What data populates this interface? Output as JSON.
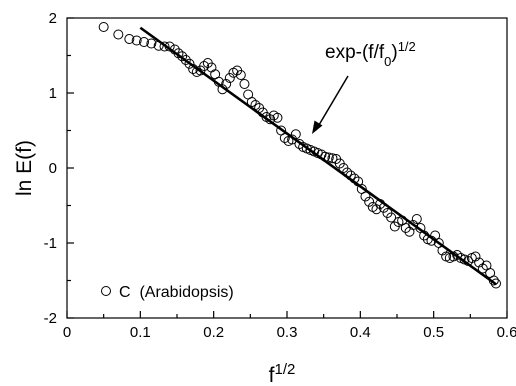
{
  "chart_data": {
    "type": "scatter",
    "xlabel": {
      "base": "f",
      "sup": "1/2"
    },
    "ylabel": "ln E(f)",
    "xlim": [
      0,
      0.6
    ],
    "ylim": [
      -2,
      2
    ],
    "xticks": [
      "0",
      "0.1",
      "0.2",
      "0.3",
      "0.4",
      "0.5",
      "0.6"
    ],
    "yticks": [
      "-2",
      "-1",
      "0",
      "1",
      "2"
    ],
    "legend": {
      "marker": "open-circle",
      "label": "C  (Arabidopsis)",
      "position": "bottom-left"
    },
    "annotation": {
      "base": "exp-(f/f",
      "sub": "0",
      "close": ")",
      "sup": "1/2"
    },
    "series": [
      {
        "kind": "scatter",
        "marker": "open-circle",
        "points": [
          [
            0.05,
            1.88
          ],
          [
            0.07,
            1.78
          ],
          [
            0.085,
            1.72
          ],
          [
            0.095,
            1.7
          ],
          [
            0.105,
            1.68
          ],
          [
            0.115,
            1.66
          ],
          [
            0.125,
            1.63
          ],
          [
            0.133,
            1.62
          ],
          [
            0.14,
            1.62
          ],
          [
            0.147,
            1.58
          ],
          [
            0.152,
            1.53
          ],
          [
            0.157,
            1.49
          ],
          [
            0.162,
            1.44
          ],
          [
            0.167,
            1.39
          ],
          [
            0.172,
            1.32
          ],
          [
            0.177,
            1.28
          ],
          [
            0.182,
            1.3
          ],
          [
            0.187,
            1.36
          ],
          [
            0.192,
            1.4
          ],
          [
            0.197,
            1.34
          ],
          [
            0.202,
            1.25
          ],
          [
            0.207,
            1.15
          ],
          [
            0.212,
            1.05
          ],
          [
            0.217,
            1.12
          ],
          [
            0.222,
            1.2
          ],
          [
            0.227,
            1.27
          ],
          [
            0.232,
            1.3
          ],
          [
            0.237,
            1.24
          ],
          [
            0.242,
            1.12
          ],
          [
            0.247,
            0.98
          ],
          [
            0.252,
            0.88
          ],
          [
            0.257,
            0.84
          ],
          [
            0.262,
            0.8
          ],
          [
            0.267,
            0.74
          ],
          [
            0.272,
            0.68
          ],
          [
            0.277,
            0.65
          ],
          [
            0.282,
            0.7
          ],
          [
            0.287,
            0.67
          ],
          [
            0.292,
            0.5
          ],
          [
            0.297,
            0.4
          ],
          [
            0.302,
            0.36
          ],
          [
            0.307,
            0.38
          ],
          [
            0.312,
            0.45
          ],
          [
            0.317,
            0.32
          ],
          [
            0.322,
            0.28
          ],
          [
            0.327,
            0.26
          ],
          [
            0.332,
            0.24
          ],
          [
            0.337,
            0.22
          ],
          [
            0.342,
            0.2
          ],
          [
            0.347,
            0.18
          ],
          [
            0.352,
            0.15
          ],
          [
            0.357,
            0.14
          ],
          [
            0.362,
            0.13
          ],
          [
            0.367,
            0.12
          ],
          [
            0.372,
            0.06
          ],
          [
            0.377,
            0.0
          ],
          [
            0.382,
            -0.06
          ],
          [
            0.387,
            -0.1
          ],
          [
            0.392,
            -0.14
          ],
          [
            0.397,
            -0.18
          ],
          [
            0.402,
            -0.28
          ],
          [
            0.407,
            -0.38
          ],
          [
            0.412,
            -0.45
          ],
          [
            0.417,
            -0.52
          ],
          [
            0.422,
            -0.55
          ],
          [
            0.427,
            -0.48
          ],
          [
            0.432,
            -0.53
          ],
          [
            0.437,
            -0.6
          ],
          [
            0.442,
            -0.66
          ],
          [
            0.447,
            -0.78
          ],
          [
            0.452,
            -0.72
          ],
          [
            0.457,
            -0.7
          ],
          [
            0.462,
            -0.8
          ],
          [
            0.467,
            -0.85
          ],
          [
            0.472,
            -0.76
          ],
          [
            0.477,
            -0.68
          ],
          [
            0.482,
            -0.8
          ],
          [
            0.487,
            -0.9
          ],
          [
            0.492,
            -0.95
          ],
          [
            0.497,
            -0.97
          ],
          [
            0.502,
            -0.9
          ],
          [
            0.507,
            -1.0
          ],
          [
            0.512,
            -1.1
          ],
          [
            0.517,
            -1.18
          ],
          [
            0.522,
            -1.2
          ],
          [
            0.527,
            -1.18
          ],
          [
            0.532,
            -1.16
          ],
          [
            0.537,
            -1.2
          ],
          [
            0.542,
            -1.22
          ],
          [
            0.547,
            -1.24
          ],
          [
            0.552,
            -1.2
          ],
          [
            0.557,
            -1.18
          ],
          [
            0.562,
            -1.26
          ],
          [
            0.567,
            -1.34
          ],
          [
            0.572,
            -1.3
          ],
          [
            0.577,
            -1.4
          ],
          [
            0.582,
            -1.5
          ],
          [
            0.585,
            -1.54
          ]
        ]
      },
      {
        "kind": "line",
        "points": [
          [
            0.1,
            1.87
          ],
          [
            0.585,
            -1.55
          ]
        ]
      }
    ]
  }
}
